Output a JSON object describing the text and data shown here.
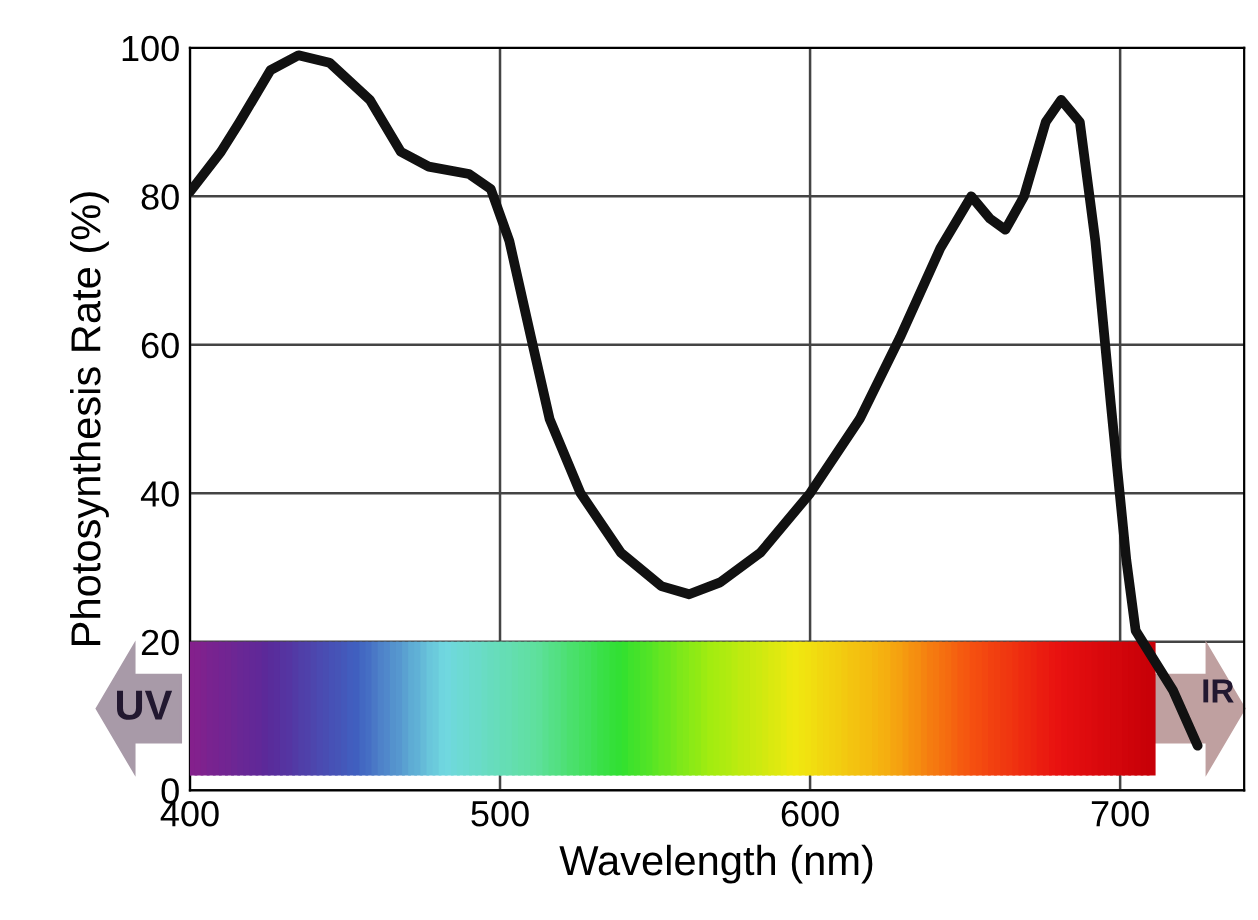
{
  "chart_data": {
    "type": "line",
    "xlabel": "Wavelength (nm)",
    "ylabel": "Photosynthesis Rate (%)",
    "xlim": [
      400,
      740
    ],
    "xticks": [
      400,
      500,
      600,
      700
    ],
    "ylim": [
      0,
      100
    ],
    "yticks": [
      0,
      20,
      40,
      60,
      80,
      100
    ],
    "grid": true,
    "marker": "none",
    "line_style": "solid",
    "annotations": [
      "UV",
      "IR"
    ],
    "series": [
      {
        "color": "#111111",
        "x": [
          400,
          410,
          416,
          426,
          435,
          445,
          458,
          468,
          477,
          490,
          497,
          503,
          510,
          516,
          526,
          539,
          552,
          561,
          571,
          584,
          600,
          616,
          629,
          642,
          652,
          658,
          663,
          669,
          676,
          681,
          687,
          692,
          697,
          702,
          705,
          717,
          725
        ],
        "values": [
          80.6,
          86,
          90,
          97,
          99,
          98,
          93,
          86,
          84,
          83,
          81,
          74,
          61,
          50,
          40,
          32,
          27.5,
          26.4,
          28,
          32,
          40,
          50,
          61,
          73,
          80,
          77,
          75.5,
          80,
          90,
          93,
          90,
          74,
          52,
          31,
          21.5,
          13.5,
          6
        ]
      }
    ]
  }
}
